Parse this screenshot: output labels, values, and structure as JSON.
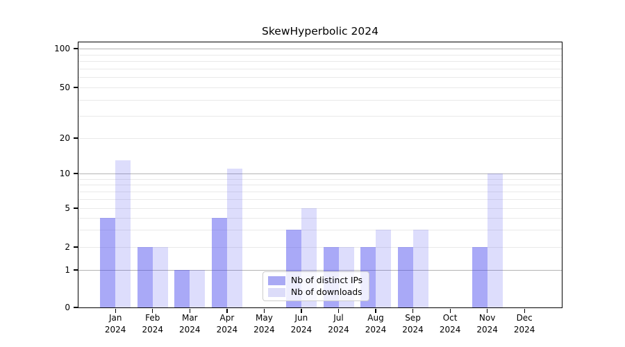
{
  "title": "SkewHyperbolic 2024",
  "chart_data": {
    "type": "bar",
    "title": "SkewHyperbolic 2024",
    "categories": [
      "Jan 2024",
      "Feb 2024",
      "Mar 2024",
      "Apr 2024",
      "May 2024",
      "Jun 2024",
      "Jul 2024",
      "Aug 2024",
      "Sep 2024",
      "Oct 2024",
      "Nov 2024",
      "Dec 2024"
    ],
    "x_months": [
      "Jan",
      "Feb",
      "Mar",
      "Apr",
      "May",
      "Jun",
      "Jul",
      "Aug",
      "Sep",
      "Oct",
      "Nov",
      "Dec"
    ],
    "x_year": "2024",
    "series": [
      {
        "name": "Nb of distinct IPs",
        "color": "rgba(64,64,237,0.45)",
        "legend_color": "#a9a9f4",
        "values": [
          4,
          2,
          1,
          4,
          0,
          3,
          2,
          2,
          2,
          0,
          2,
          0
        ]
      },
      {
        "name": "Nb of downloads",
        "color": "rgba(64,64,237,0.18)",
        "legend_color": "#dcdcf9",
        "values": [
          13,
          2,
          1,
          11,
          0,
          5,
          2,
          3,
          3,
          0,
          10,
          0
        ]
      }
    ],
    "yscale": "log-like",
    "ylim": [
      0,
      112
    ],
    "y_ticks": [
      100,
      50,
      20,
      10,
      5,
      2,
      1,
      0
    ],
    "y_tick_labels": [
      "100",
      "50",
      "20",
      "10",
      "5",
      "2",
      "1",
      "0"
    ],
    "grid": {
      "on": true,
      "major_lines": [
        1,
        10,
        100
      ],
      "minor_lines": [
        2,
        3,
        4,
        5,
        6,
        7,
        8,
        9,
        20,
        30,
        40,
        50,
        60,
        70,
        80,
        90
      ]
    },
    "legend_position": "lower center"
  },
  "colors": {
    "major_grid": "#b3b3b3",
    "minor_grid": "#e9e9e9",
    "spine": "#000000",
    "background": "#ffffff",
    "bar_dark": "#a9a9f4",
    "bar_light": "#dcdcf9"
  }
}
